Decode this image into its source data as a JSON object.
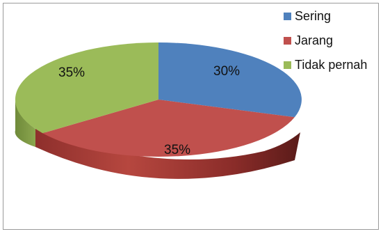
{
  "chart_data": {
    "type": "pie",
    "style": "3d",
    "categories": [
      "Sering",
      "Jarang",
      "Tidak pernah"
    ],
    "values": [
      30,
      35,
      35
    ],
    "labels": [
      "30%",
      "35%",
      "35%"
    ],
    "colors": [
      "#4f81bd",
      "#c0504d",
      "#9bbb59"
    ],
    "legend": {
      "position": "top-right"
    }
  }
}
